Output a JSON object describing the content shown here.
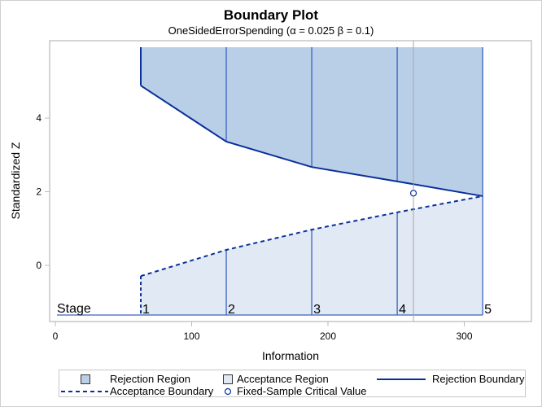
{
  "chart_data": {
    "type": "area",
    "title": "Boundary Plot",
    "subtitle": "OneSidedErrorSpending (α = 0.025  β = 0.1)",
    "xlabel": "Information",
    "ylabel": "Standardized Z",
    "xlim": [
      -5,
      345
    ],
    "ylim": [
      -1.55,
      5.9
    ],
    "x_ticks": [
      0,
      100,
      200,
      300
    ],
    "y_ticks": [
      0,
      2,
      4
    ],
    "grid": false,
    "legend_position": "bottom",
    "stage_label": "Stage",
    "stages": [
      1,
      2,
      3,
      4,
      5
    ],
    "information": [
      62.7,
      125.4,
      188.1,
      250.8,
      313.5
    ],
    "series": [
      {
        "name": "Rejection Boundary",
        "style": "solid",
        "values": [
          4.88,
          3.36,
          2.67,
          2.28,
          1.88
        ]
      },
      {
        "name": "Acceptance Boundary",
        "style": "dashed",
        "values": [
          -0.29,
          0.42,
          0.97,
          1.44,
          1.88
        ]
      }
    ],
    "regions": [
      {
        "name": "Rejection Region",
        "color": "#b9cfe7"
      },
      {
        "name": "Acceptance Region",
        "color": "#e1e9f4"
      }
    ],
    "fixed_sample": {
      "name": "Fixed-Sample Critical Value",
      "x": 262.7,
      "y": 1.96
    },
    "reference_line_x": 262.7
  },
  "legend": {
    "items": [
      {
        "label": "Rejection Region"
      },
      {
        "label": "Acceptance Region"
      },
      {
        "label": "Rejection Boundary"
      },
      {
        "label": "Acceptance Boundary"
      },
      {
        "label": "Fixed-Sample Critical Value"
      }
    ]
  },
  "colors": {
    "boundary": "#0a2f9a",
    "rejection_fill": "#b9cfe7",
    "acceptance_fill": "#e1e9f4",
    "stage_line": "#3a62c0",
    "frame": "#bdbdbd",
    "reference": "#a8a8a8"
  }
}
